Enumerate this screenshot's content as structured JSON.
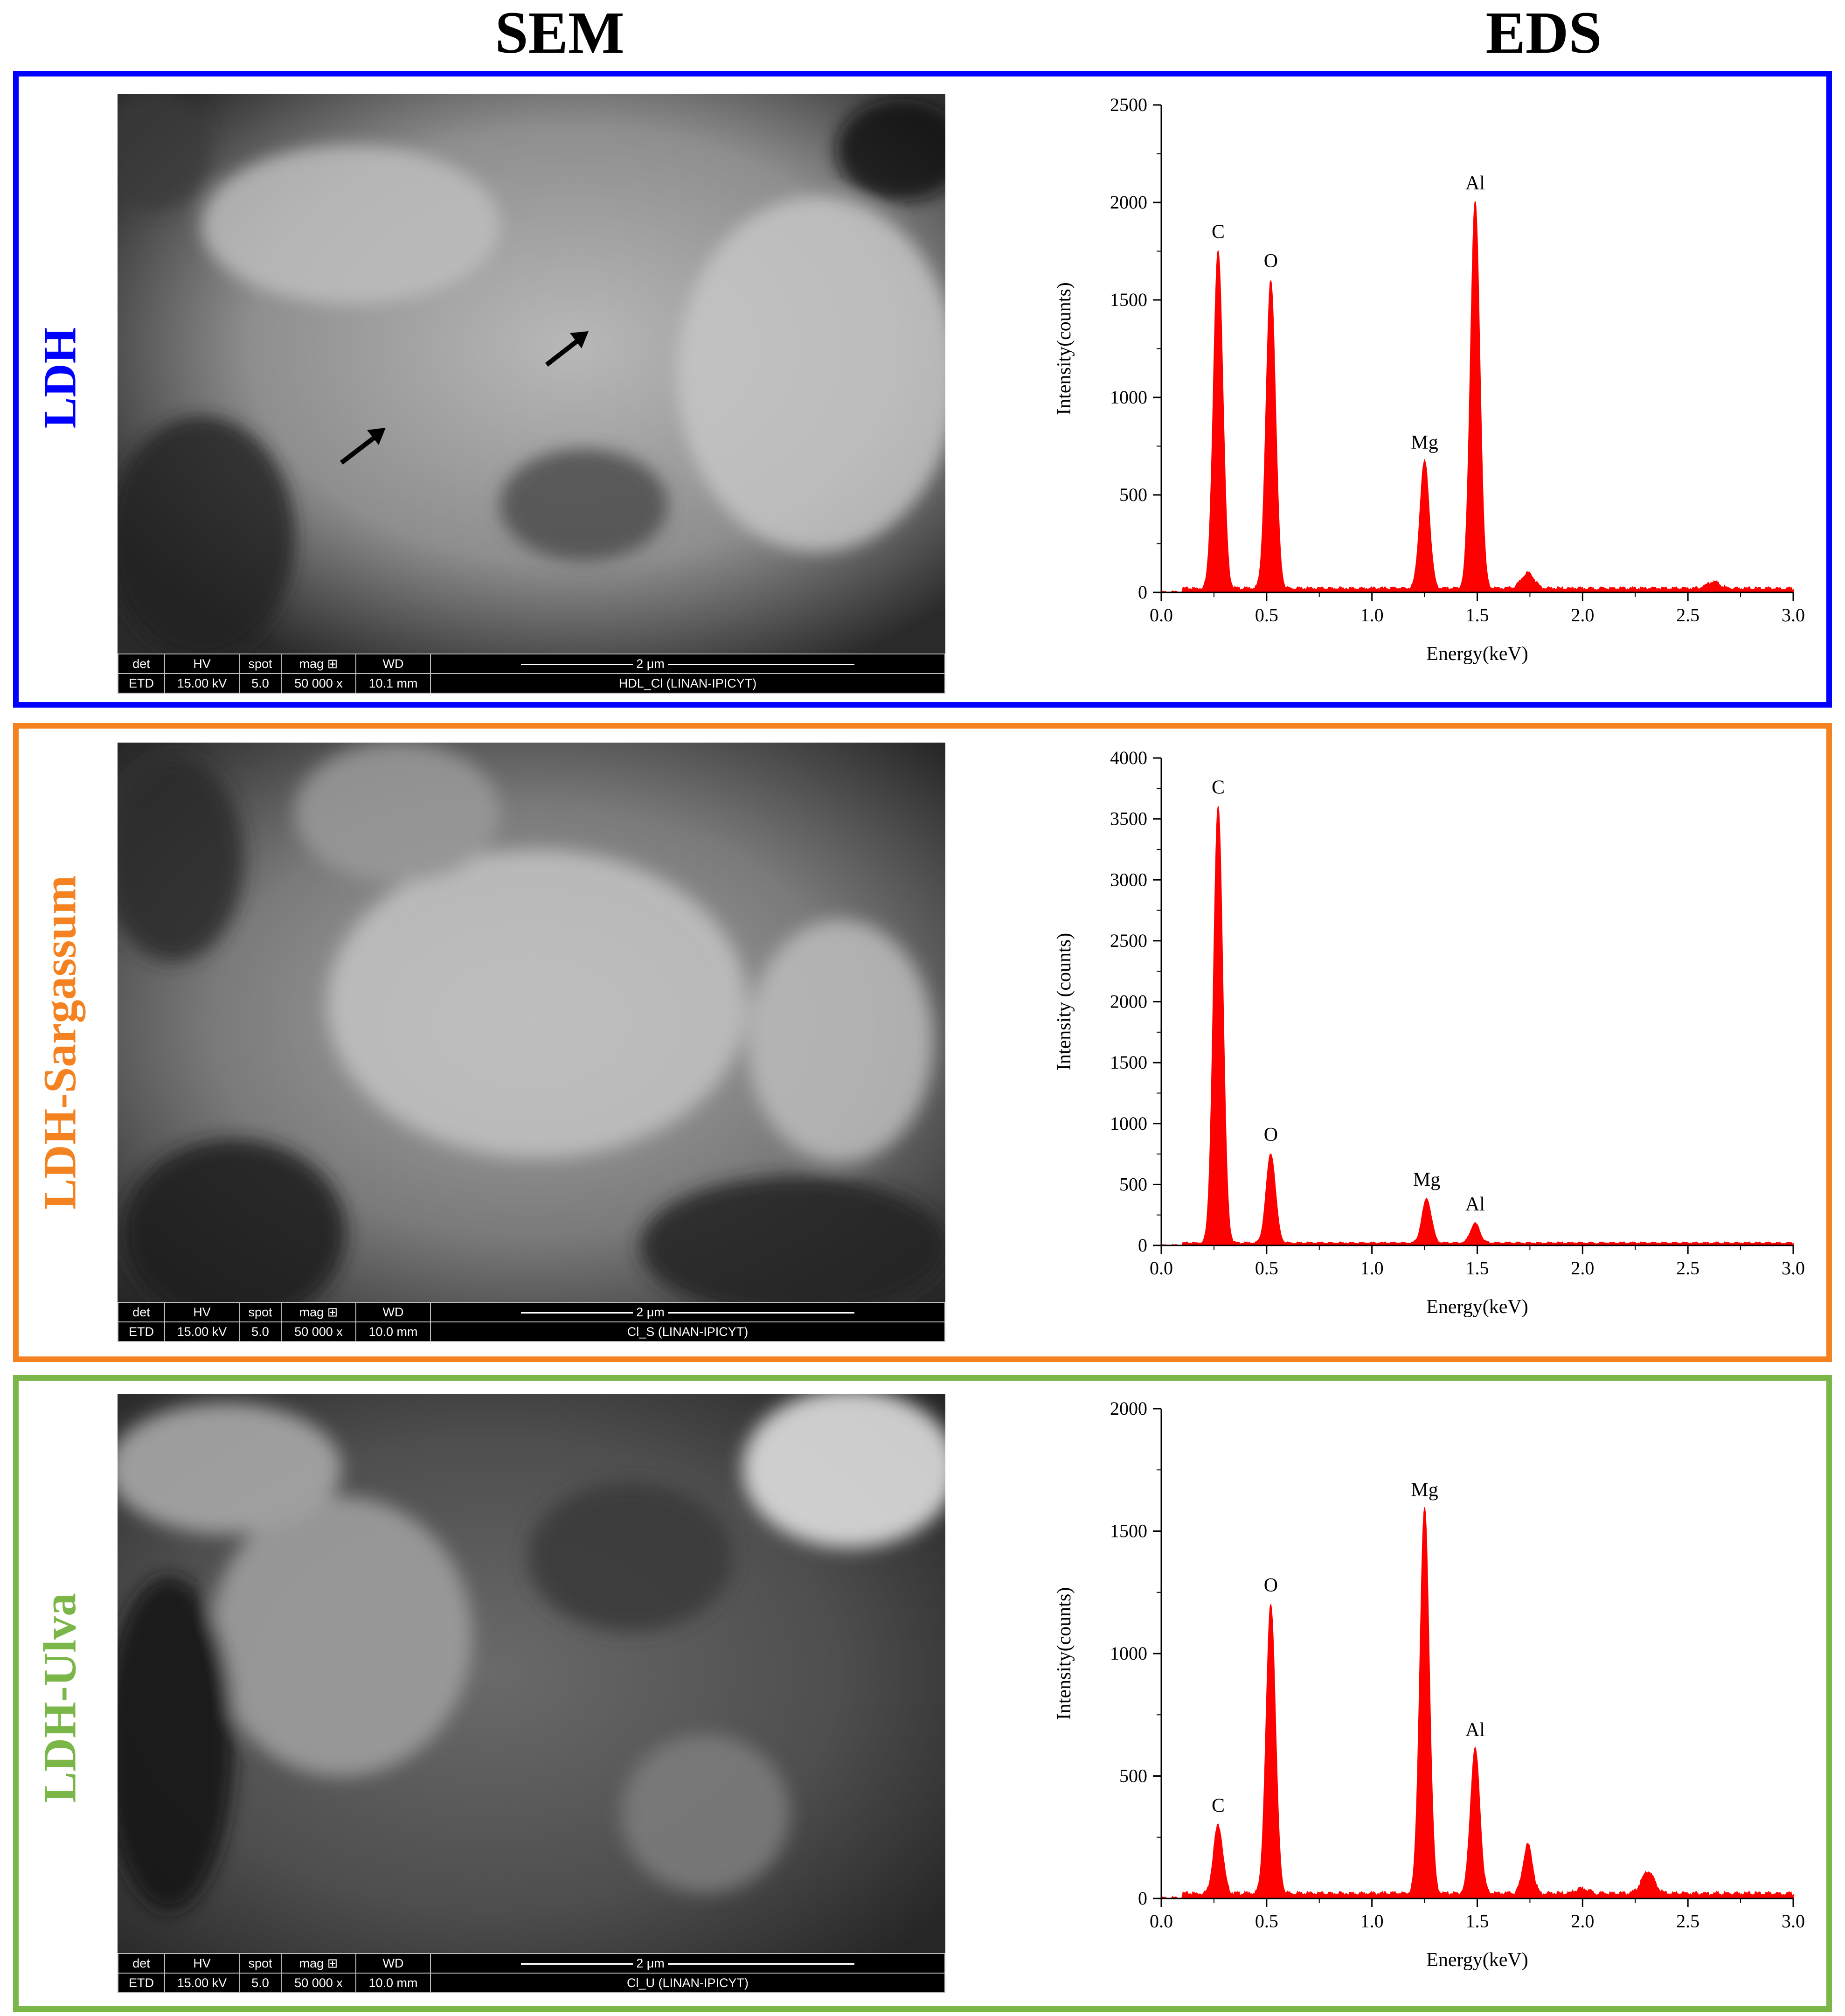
{
  "headers": {
    "left": "SEM",
    "right": "EDS"
  },
  "colors": {
    "ldh": "#0000ff",
    "sargassum": "#f58220",
    "ulva": "#7ab648",
    "spectrum": "#ff0000"
  },
  "sem_databar": {
    "col_labels": [
      "det",
      "HV",
      "spot",
      "mag ⊞",
      "WD"
    ],
    "scale_label": "2 μm"
  },
  "panels": [
    {
      "label": "LDH",
      "sem": {
        "values": [
          "ETD",
          "15.00 kV",
          "5.0",
          "50 000 x",
          "10.1 mm"
        ],
        "sample": "HDL_Cl   (LINAN-IPICYT)"
      }
    },
    {
      "label": "LDH-Sargassum",
      "sem": {
        "values": [
          "ETD",
          "15.00 kV",
          "5.0",
          "50 000 x",
          "10.0 mm"
        ],
        "sample": "Cl_S   (LINAN-IPICYT)"
      }
    },
    {
      "label": "LDH-Ulva",
      "sem": {
        "values": [
          "ETD",
          "15.00 kV",
          "5.0",
          "50 000 x",
          "10.0 mm"
        ],
        "sample": "Cl_U   (LINAN-IPICYT)"
      }
    }
  ],
  "chart_data": [
    {
      "type": "area",
      "xlabel": "Energy(keV)",
      "ylabel": "Intensity(counts)",
      "xlim": [
        0,
        3.0
      ],
      "ylim": [
        0,
        2500
      ],
      "xticks": [
        "0.0",
        "0.5",
        "1.0",
        "1.5",
        "2.0",
        "2.5",
        "3.0"
      ],
      "yticks": [
        "0",
        "500",
        "1000",
        "1500",
        "2000",
        "2500"
      ],
      "series_color": "#ff0000",
      "baseline": 20,
      "peaks": [
        {
          "label": "C",
          "x": 0.27,
          "y": 1750
        },
        {
          "label": "O",
          "x": 0.52,
          "y": 1600
        },
        {
          "label": "Mg",
          "x": 1.25,
          "y": 670
        },
        {
          "label": "Al",
          "x": 1.49,
          "y": 2000
        },
        {
          "label": "",
          "x": 1.74,
          "y": 100
        },
        {
          "label": "",
          "x": 2.62,
          "y": 55
        }
      ]
    },
    {
      "type": "area",
      "xlabel": "Energy(keV)",
      "ylabel": "Intensity (counts)",
      "xlim": [
        0,
        3.0
      ],
      "ylim": [
        0,
        4000
      ],
      "xticks": [
        "0.0",
        "0.5",
        "1.0",
        "1.5",
        "2.0",
        "2.5",
        "3.0"
      ],
      "yticks": [
        "0",
        "500",
        "1000",
        "1500",
        "2000",
        "2500",
        "3000",
        "3500",
        "4000"
      ],
      "series_color": "#ff0000",
      "baseline": 20,
      "peaks": [
        {
          "label": "C",
          "x": 0.27,
          "y": 3600
        },
        {
          "label": "O",
          "x": 0.52,
          "y": 750
        },
        {
          "label": "Mg",
          "x": 1.26,
          "y": 380
        },
        {
          "label": "Al",
          "x": 1.49,
          "y": 180
        }
      ]
    },
    {
      "type": "area",
      "xlabel": "Energy(keV)",
      "ylabel": "Intensity(counts)",
      "xlim": [
        0,
        3.0
      ],
      "ylim": [
        0,
        2000
      ],
      "xticks": [
        "0.0",
        "0.5",
        "1.0",
        "1.5",
        "2.0",
        "2.5",
        "3.0"
      ],
      "yticks": [
        "0",
        "500",
        "1000",
        "1500",
        "2000"
      ],
      "series_color": "#ff0000",
      "baseline": 20,
      "peaks": [
        {
          "label": "C",
          "x": 0.27,
          "y": 300
        },
        {
          "label": "O",
          "x": 0.52,
          "y": 1200
        },
        {
          "label": "Mg",
          "x": 1.25,
          "y": 1590
        },
        {
          "label": "Al",
          "x": 1.49,
          "y": 610
        },
        {
          "label": "",
          "x": 1.74,
          "y": 220
        },
        {
          "label": "",
          "x": 2.0,
          "y": 40
        },
        {
          "label": "",
          "x": 2.31,
          "y": 110
        }
      ]
    }
  ]
}
